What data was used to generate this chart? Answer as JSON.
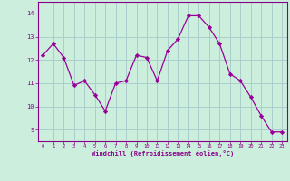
{
  "x": [
    0,
    1,
    2,
    3,
    4,
    5,
    6,
    7,
    8,
    9,
    10,
    11,
    12,
    13,
    14,
    15,
    16,
    17,
    18,
    19,
    20,
    21,
    22,
    23
  ],
  "y": [
    12.2,
    12.7,
    12.1,
    10.9,
    11.1,
    10.5,
    9.8,
    11.0,
    11.1,
    12.2,
    12.1,
    11.1,
    12.4,
    12.9,
    13.9,
    13.9,
    13.4,
    12.7,
    11.4,
    11.1,
    10.4,
    9.6,
    8.9,
    8.9
  ],
  "line_color": "#990099",
  "marker_color": "#990099",
  "bg_color": "#cceedd",
  "grid_color": "#aacccc",
  "xlabel": "Windchill (Refroidissement éolien,°C)",
  "ylabel_ticks": [
    9,
    10,
    11,
    12,
    13,
    14
  ],
  "xlim": [
    -0.5,
    23.5
  ],
  "ylim": [
    8.5,
    14.5
  ],
  "xticks": [
    0,
    1,
    2,
    3,
    4,
    5,
    6,
    7,
    8,
    9,
    10,
    11,
    12,
    13,
    14,
    15,
    16,
    17,
    18,
    19,
    20,
    21,
    22,
    23
  ],
  "xlabel_color": "#880088",
  "tick_color": "#880088",
  "spine_color": "#880088"
}
